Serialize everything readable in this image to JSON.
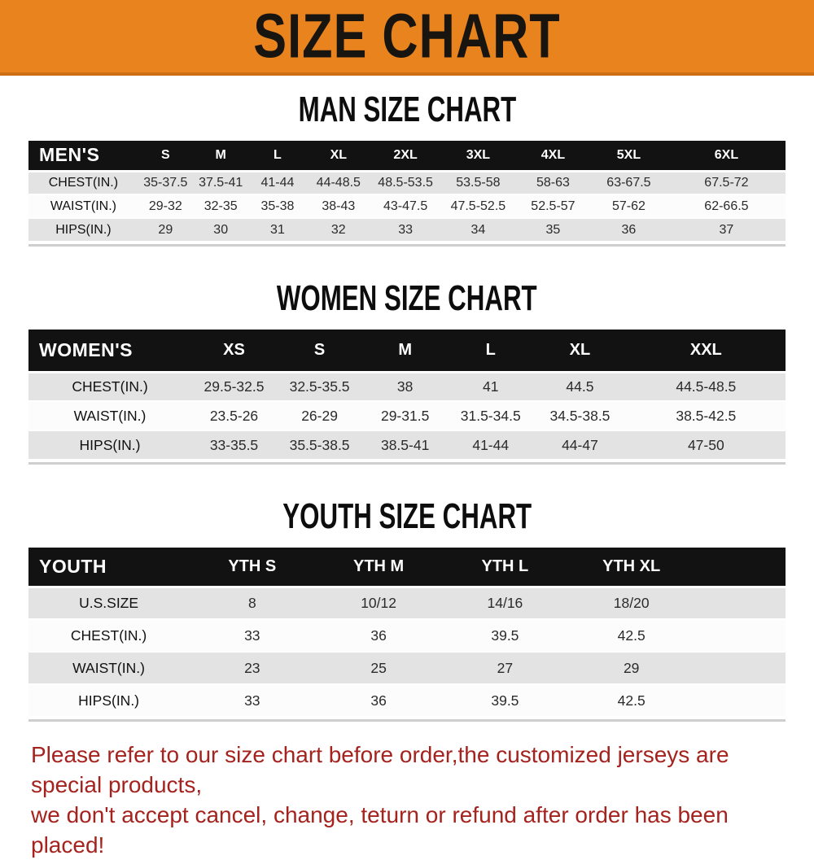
{
  "banner": {
    "title": "SIZE CHART",
    "bg_color": "#E9831E",
    "text_color": "#181410"
  },
  "chart_data": [
    {
      "type": "table",
      "title": "MAN SIZE CHART",
      "corner_label": "MEN'S",
      "columns": [
        "S",
        "M",
        "L",
        "XL",
        "2XL",
        "3XL",
        "4XL",
        "5XL",
        "6XL"
      ],
      "rows": [
        {
          "label": "CHEST(IN.)",
          "values": [
            "35-37.5",
            "37.5-41",
            "41-44",
            "44-48.5",
            "48.5-53.5",
            "53.5-58",
            "58-63",
            "63-67.5",
            "67.5-72"
          ]
        },
        {
          "label": "WAIST(IN.)",
          "values": [
            "29-32",
            "32-35",
            "35-38",
            "38-43",
            "43-47.5",
            "47.5-52.5",
            "52.5-57",
            "57-62",
            "62-66.5"
          ]
        },
        {
          "label": "HIPS(IN.)",
          "values": [
            "29",
            "30",
            "31",
            "32",
            "33",
            "34",
            "35",
            "36",
            "37"
          ]
        }
      ]
    },
    {
      "type": "table",
      "title": "WOMEN SIZE CHART",
      "corner_label": "WOMEN'S",
      "columns": [
        "XS",
        "S",
        "M",
        "L",
        "XL",
        "XXL"
      ],
      "rows": [
        {
          "label": "CHEST(IN.)",
          "values": [
            "29.5-32.5",
            "32.5-35.5",
            "38",
            "41",
            "44.5",
            "44.5-48.5"
          ]
        },
        {
          "label": "WAIST(IN.)",
          "values": [
            "23.5-26",
            "26-29",
            "29-31.5",
            "31.5-34.5",
            "34.5-38.5",
            "38.5-42.5"
          ]
        },
        {
          "label": "HIPS(IN.)",
          "values": [
            "33-35.5",
            "35.5-38.5",
            "38.5-41",
            "41-44",
            "44-47",
            "47-50"
          ]
        }
      ]
    },
    {
      "type": "table",
      "title": "YOUTH SIZE CHART",
      "corner_label": "YOUTH",
      "columns": [
        "YTH S",
        "YTH M",
        "YTH L",
        "YTH XL"
      ],
      "rows": [
        {
          "label": "U.S.SIZE",
          "values": [
            "8",
            "10/12",
            "14/16",
            "18/20"
          ]
        },
        {
          "label": "CHEST(IN.)",
          "values": [
            "33",
            "36",
            "39.5",
            "42.5"
          ]
        },
        {
          "label": "WAIST(IN.)",
          "values": [
            "23",
            "25",
            "27",
            "29"
          ]
        },
        {
          "label": "HIPS(IN.)",
          "values": [
            "33",
            "36",
            "39.5",
            "42.5"
          ]
        }
      ]
    }
  ],
  "disclaimer": {
    "line1": "Please refer to our size chart before order,the customized jerseys are special products,",
    "line2": "we don't accept cancel, change, teturn or refund after order has been placed!",
    "color": "#A5231E"
  },
  "table_colors": {
    "header_bg": "#121212",
    "header_text": "#FFFFFF",
    "shaded_row_bg": "#E3E3E3",
    "plain_row_bg": "#FCFCFC"
  }
}
